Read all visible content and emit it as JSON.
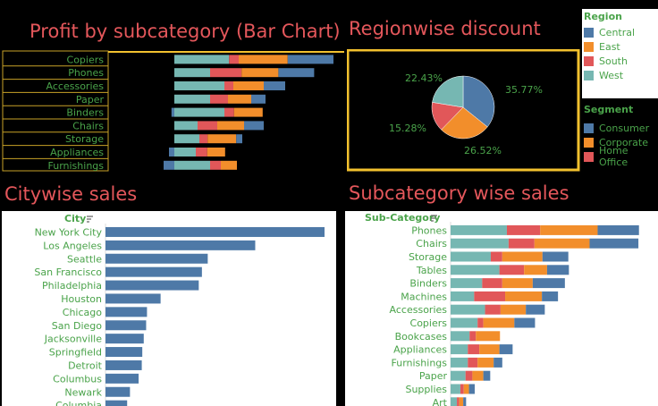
{
  "colors": {
    "Central": "#4e79a7",
    "East": "#f28e2b",
    "South": "#e15759",
    "West": "#76b7b2",
    "Consumer": "#4e79a7",
    "Corporate": "#f28e2b",
    "Home Office": "#e15759"
  },
  "titles": {
    "profit": "Profit by subcategory (Bar Chart)",
    "region": "Regionwise discount",
    "city": "Citywise sales",
    "subcat_sales": "Subcategory wise sales"
  },
  "legend_region": {
    "title": "Region",
    "items": [
      "Central",
      "East",
      "South",
      "West"
    ]
  },
  "legend_segment": {
    "title": "Segment",
    "items": [
      "Consumer",
      "Corporate",
      "Home Office"
    ]
  },
  "chart_data": [
    {
      "id": "profit",
      "type": "bar",
      "orientation": "horizontal-stacked",
      "categories": [
        "Copiers",
        "Phones",
        "Accessories",
        "Paper",
        "Binders",
        "Chairs",
        "Storage",
        "Appliances",
        "Furnishings"
      ],
      "series": [
        {
          "name": "West",
          "values": [
            15.3,
            10.0,
            14.0,
            10.0,
            14.0,
            6.5,
            7.0,
            6.0,
            10.0
          ]
        },
        {
          "name": "South",
          "values": [
            2.7,
            8.8,
            2.5,
            5.0,
            2.7,
            5.5,
            2.3,
            3.2,
            3.0
          ]
        },
        {
          "name": "East",
          "values": [
            13.7,
            10.3,
            8.5,
            6.5,
            8.0,
            7.5,
            8.0,
            5.0,
            4.5
          ]
        },
        {
          "name": "Central",
          "values": [
            12.8,
            10.0,
            6.0,
            4.0,
            0,
            5.5,
            1.7,
            0,
            0
          ]
        }
      ],
      "negatives": [
        0,
        0,
        0,
        0,
        -0.8,
        0,
        0,
        -1.5,
        -3.0
      ]
    },
    {
      "id": "region",
      "type": "pie",
      "labels": [
        "Central",
        "East",
        "South",
        "West"
      ],
      "values": [
        35.77,
        26.52,
        15.28,
        22.43
      ],
      "value_labels": [
        "35.77%",
        "26.52%",
        "15.28%",
        "22.43%"
      ]
    },
    {
      "id": "city",
      "type": "bar",
      "header": "City",
      "categories": [
        "New York City",
        "Los Angeles",
        "Seattle",
        "San Francisco",
        "Philadelphia",
        "Houston",
        "Chicago",
        "San Diego",
        "Jacksonville",
        "Springfield",
        "Detroit",
        "Columbus",
        "Newark",
        "Columbia"
      ],
      "values": [
        256000,
        175000,
        119500,
        112700,
        109000,
        64400,
        48500,
        47500,
        44700,
        43000,
        42400,
        38700,
        28600,
        25300
      ]
    },
    {
      "id": "subcat_sales",
      "type": "bar",
      "orientation": "horizontal-stacked",
      "header": "Sub-Category",
      "categories": [
        "Phones",
        "Chairs",
        "Storage",
        "Tables",
        "Binders",
        "Machines",
        "Accessories",
        "Copiers",
        "Bookcases",
        "Appliances",
        "Furnishings",
        "Paper",
        "Supplies",
        "Art"
      ],
      "series": [
        {
          "name": "West",
          "values": [
            98000,
            101000,
            70000,
            85000,
            55000,
            41000,
            60000,
            47000,
            33000,
            30000,
            30000,
            26000,
            17000,
            11000
          ]
        },
        {
          "name": "South",
          "values": [
            58000,
            45000,
            20000,
            43000,
            35000,
            54000,
            27000,
            10000,
            11000,
            20000,
            17000,
            12000,
            6000,
            4000
          ]
        },
        {
          "name": "East",
          "values": [
            100000,
            96000,
            70000,
            40000,
            53000,
            64000,
            44000,
            54000,
            42000,
            35000,
            28000,
            19000,
            9000,
            7000
          ]
        },
        {
          "name": "Central",
          "values": [
            72000,
            85000,
            45000,
            38000,
            56000,
            28000,
            33000,
            36000,
            0,
            23000,
            15000,
            12000,
            10000,
            5000
          ]
        }
      ]
    }
  ]
}
